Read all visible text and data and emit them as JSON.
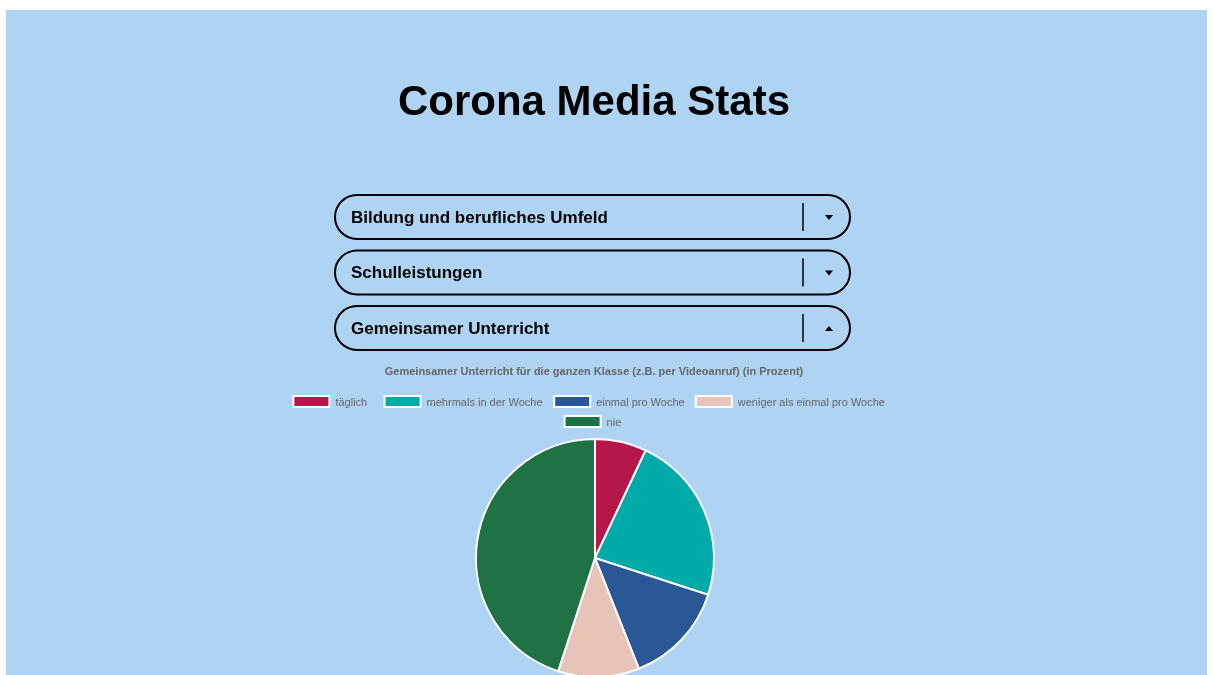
{
  "chart_data": {
    "type": "pie",
    "title": "Corona Media Stats",
    "subtitle": "Gemeinsamer Unterricht für die ganzen Klasse (z.B. per Videoanruf) (in Prozent)",
    "annotations": [
      "Bildung und berufliches Umfeld",
      "Schulleistungen",
      "Gemeinsamer Unterricht"
    ],
    "categories": [
      "täglich",
      "mehrmals in der Woche",
      "einmal pro Woche",
      "weniger als einmal pro Woche",
      "nie"
    ],
    "values": [
      7,
      23,
      14,
      11,
      45
    ],
    "colors": [
      "#b5174a",
      "#00aaa8",
      "#2a5896",
      "#e8c3b8",
      "#1f7244"
    ],
    "legend": "top"
  }
}
